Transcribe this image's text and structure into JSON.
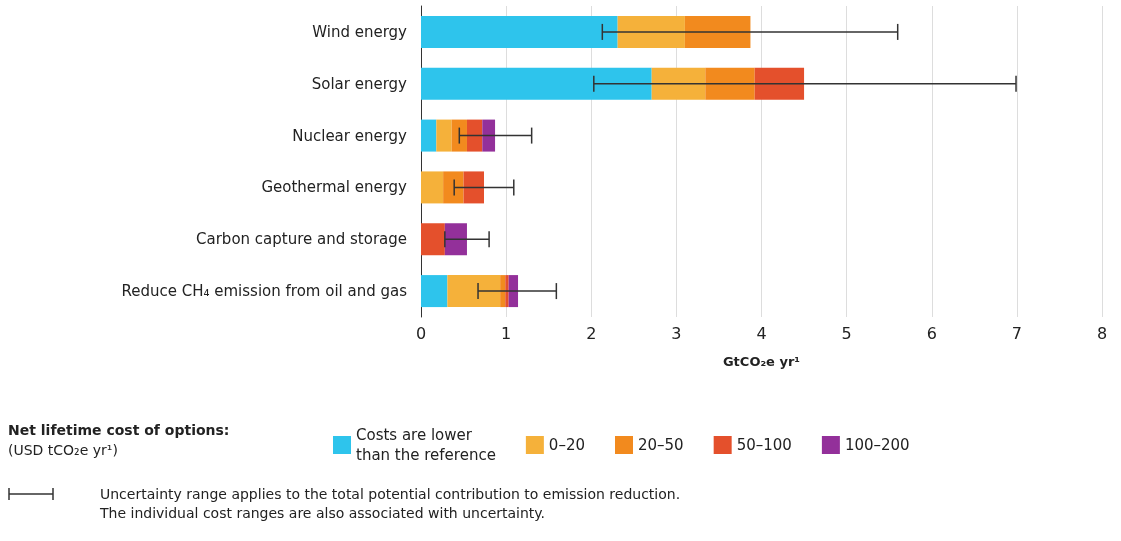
{
  "chart_data": {
    "type": "bar",
    "orientation": "horizontal",
    "stacked": true,
    "categories": [
      "Wind energy",
      "Solar energy",
      "Nuclear energy",
      "Geothermal energy",
      "Carbon capture and storage",
      "Reduce CH₄ emission from oil and gas"
    ],
    "series": [
      {
        "name": "Costs are lower\nthan the reference",
        "color": "#2ec4ec",
        "values": [
          2.31,
          2.71,
          0.18,
          null,
          null,
          0.31
        ]
      },
      {
        "name": "0–20",
        "color": "#f5b13a",
        "values": [
          0.79,
          0.63,
          0.18,
          0.26,
          null,
          0.62
        ]
      },
      {
        "name": "20–50",
        "color": "#f28a1e",
        "values": [
          0.77,
          0.58,
          0.18,
          0.24,
          null,
          0.06
        ],
        "errors": [
          [
            2.13,
            5.6
          ],
          null,
          null,
          null,
          null,
          null
        ]
      },
      {
        "name": "50–100",
        "color": "#e4502c",
        "values": [
          null,
          0.58,
          0.18,
          0.24,
          0.28,
          0.04
        ],
        "errors": [
          null,
          [
            2.03,
            6.99
          ],
          null,
          [
            0.39,
            1.09
          ],
          null,
          null
        ]
      },
      {
        "name": "100–200",
        "color": "#93309a",
        "values": [
          null,
          null,
          0.15,
          null,
          0.26,
          0.11
        ],
        "errors": [
          null,
          null,
          [
            0.45,
            1.3
          ],
          null,
          [
            0.28,
            0.8
          ],
          [
            0.67,
            1.59
          ]
        ]
      }
    ],
    "xlabel": "GtCO₂e yr¹",
    "xlim": [
      0,
      8
    ],
    "xticks": [
      0,
      1,
      2,
      3,
      4,
      5,
      6,
      7,
      8
    ],
    "grid": "x",
    "legend": "bottom",
    "legend_title": "Net lifetime cost of options:\n(USD tCO₂e yr¹)",
    "annotations": [
      "Uncertainty range applies to the total potential contribution to emission reduction.\nThe individual cost ranges are also associated with uncertainty."
    ]
  }
}
